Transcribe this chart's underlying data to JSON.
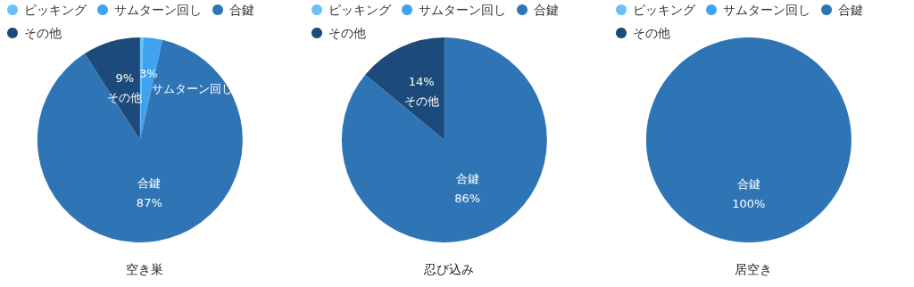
{
  "chart_data": [
    {
      "type": "pie",
      "title": "空き巣",
      "categories": [
        "ピッキング",
        "サムターン回し",
        "合鍵",
        "その他"
      ],
      "values": [
        0.5,
        3,
        87,
        9
      ],
      "value_labels": [
        null,
        "3%",
        "87%",
        "9%"
      ],
      "colors": [
        "#6ac0f7",
        "#3fa3f2",
        "#2f75b5",
        "#1c4a7a"
      ],
      "legend": "top left"
    },
    {
      "type": "pie",
      "title": "忍び込み",
      "categories": [
        "ピッキング",
        "サムターン回し",
        "合鍵",
        "その他"
      ],
      "values": [
        0,
        0,
        86,
        14
      ],
      "value_labels": [
        null,
        null,
        "86%",
        "14%"
      ],
      "colors": [
        "#6ac0f7",
        "#3fa3f2",
        "#2f75b5",
        "#1c4a7a"
      ],
      "legend": "top left"
    },
    {
      "type": "pie",
      "title": "居空き",
      "categories": [
        "ピッキング",
        "サムターン回し",
        "合鍵",
        "その他"
      ],
      "values": [
        0,
        0,
        100,
        0
      ],
      "value_labels": [
        null,
        null,
        "100%",
        null
      ],
      "colors": [
        "#6ac0f7",
        "#3fa3f2",
        "#2f75b5",
        "#1c4a7a"
      ],
      "legend": "top left"
    }
  ]
}
